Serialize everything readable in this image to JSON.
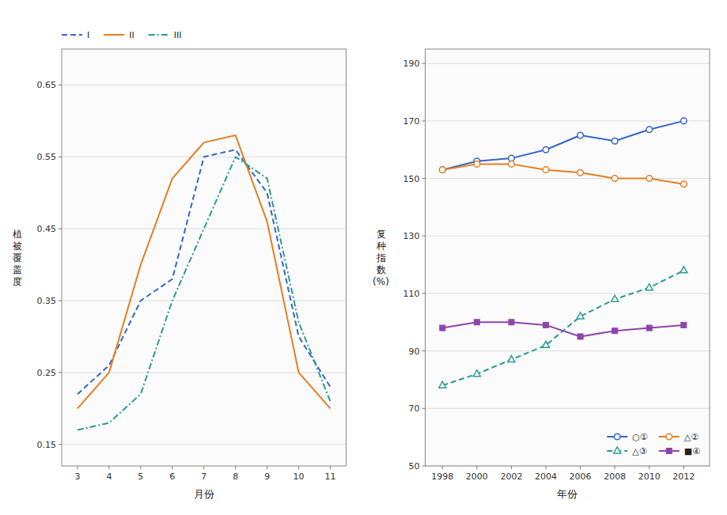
{
  "chart_data": [
    {
      "type": "line",
      "x": [
        3,
        4,
        5,
        6,
        7,
        8,
        9,
        10,
        11
      ],
      "xlim": [
        2.5,
        11.5
      ],
      "xticks": [
        3,
        4,
        5,
        6,
        7,
        8,
        9,
        10,
        11
      ],
      "ylim": [
        0.12,
        0.7
      ],
      "yticks": [
        0.15,
        0.25,
        0.35,
        0.45,
        0.55,
        0.65
      ],
      "xlabel": "月份",
      "ylabel": "植\n被\n覆\n盖\n度",
      "grid": true,
      "legend": "upper left",
      "series": [
        {
          "name": "I",
          "line_style": "dashed",
          "values": [
            0.22,
            0.26,
            0.35,
            0.38,
            0.55,
            0.56,
            0.5,
            0.3,
            0.23
          ]
        },
        {
          "name": "II",
          "line_style": "solid",
          "values": [
            0.2,
            0.25,
            0.4,
            0.52,
            0.57,
            0.58,
            0.46,
            0.25,
            0.2
          ]
        },
        {
          "name": "III",
          "line_style": "dashdot",
          "values": [
            0.17,
            0.18,
            0.22,
            0.35,
            0.45,
            0.55,
            0.52,
            0.32,
            0.21
          ]
        }
      ]
    },
    {
      "type": "line",
      "x": [
        1998,
        2000,
        2002,
        2004,
        2006,
        2008,
        2010,
        2012
      ],
      "xlim": [
        1997,
        2013.5
      ],
      "xticks": [
        1998,
        2000,
        2002,
        2004,
        2006,
        2008,
        2010,
        2012
      ],
      "ylim": [
        50,
        195
      ],
      "yticks": [
        50,
        70,
        90,
        110,
        130,
        150,
        170,
        190
      ],
      "xlabel": "年份",
      "ylabel": "复\n种\n指\n数\n(%)",
      "grid": true,
      "legend": "lower right",
      "series": [
        {
          "name": "○①",
          "marker": "circle",
          "line_style": "solid",
          "values": [
            153,
            156,
            157,
            160,
            165,
            163,
            167,
            170
          ]
        },
        {
          "name": "△②",
          "marker": "circle",
          "line_style": "solid",
          "values": [
            153,
            155,
            155,
            153,
            152,
            150,
            150,
            148
          ]
        },
        {
          "name": "△③",
          "marker": "triangle",
          "line_style": "dashed",
          "values": [
            78,
            82,
            87,
            92,
            102,
            108,
            112,
            118
          ]
        },
        {
          "name": "■④",
          "marker": "square",
          "line_style": "solid",
          "values": [
            98,
            100,
            100,
            99,
            95,
            97,
            98,
            99
          ]
        }
      ]
    }
  ]
}
